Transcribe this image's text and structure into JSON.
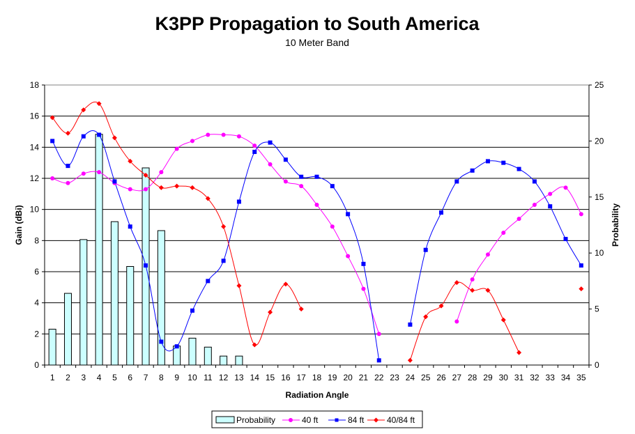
{
  "chart_data": {
    "type": "bar+line",
    "title": "K3PP Propagation to South America",
    "subtitle": "10 Meter Band",
    "xlabel": "Radiation Angle",
    "ylabel": "Gain (dBi)",
    "y2label": "Probability",
    "categories": [
      "1",
      "2",
      "3",
      "4",
      "5",
      "6",
      "7",
      "8",
      "9",
      "10",
      "11",
      "12",
      "13",
      "14",
      "15",
      "16",
      "17",
      "18",
      "19",
      "20",
      "21",
      "22",
      "23",
      "24",
      "25",
      "26",
      "27",
      "28",
      "29",
      "30",
      "31",
      "32",
      "33",
      "34",
      "35"
    ],
    "ylim": [
      0,
      18
    ],
    "yticks": [
      0,
      2,
      4,
      6,
      8,
      10,
      12,
      14,
      16,
      18
    ],
    "y2lim": [
      0,
      25
    ],
    "y2ticks": [
      0,
      5,
      10,
      15,
      20,
      25
    ],
    "grid": true,
    "legend_position": "bottom",
    "bars": {
      "name": "Probability",
      "axis": "right",
      "color": "#ccffff",
      "values": [
        3.2,
        6.4,
        11.2,
        20.6,
        12.8,
        8.8,
        17.6,
        12.0,
        1.7,
        2.4,
        1.6,
        0.8,
        0.8,
        0,
        0,
        0,
        0,
        0,
        0,
        0,
        0,
        0,
        0,
        0,
        0,
        0,
        0,
        0,
        0,
        0,
        0,
        0,
        0,
        0,
        0
      ]
    },
    "series": [
      {
        "name": "40 ft",
        "color": "#ff00ff",
        "marker": "circle",
        "values": [
          12.0,
          11.7,
          12.3,
          12.4,
          11.7,
          11.3,
          11.3,
          12.4,
          13.9,
          14.4,
          14.8,
          14.8,
          14.7,
          14.1,
          12.9,
          11.8,
          11.5,
          10.3,
          8.9,
          7.0,
          4.9,
          2.0,
          null,
          null,
          null,
          null,
          2.8,
          5.5,
          7.1,
          8.5,
          9.4,
          10.3,
          11.0,
          11.4,
          9.7
        ]
      },
      {
        "name": "84 ft",
        "color": "#0000ff",
        "marker": "square",
        "values": [
          14.4,
          12.8,
          14.7,
          14.8,
          11.8,
          8.9,
          6.4,
          1.5,
          1.2,
          3.5,
          5.4,
          6.7,
          10.5,
          13.7,
          14.3,
          13.2,
          12.1,
          12.1,
          11.5,
          9.7,
          6.5,
          0.3,
          null,
          2.6,
          7.4,
          9.8,
          11.8,
          12.5,
          13.1,
          13.0,
          12.6,
          11.8,
          10.2,
          8.1,
          6.4
        ]
      },
      {
        "name": "40/84 ft",
        "color": "#ff0000",
        "marker": "diamond",
        "values": [
          15.9,
          14.9,
          16.4,
          16.8,
          14.6,
          13.1,
          12.2,
          11.4,
          11.5,
          11.4,
          10.7,
          8.9,
          5.1,
          1.3,
          3.4,
          5.2,
          3.6,
          null,
          null,
          null,
          null,
          null,
          null,
          0.3,
          3.1,
          3.8,
          5.3,
          4.8,
          4.8,
          2.9,
          0.8,
          null,
          null,
          null,
          4.9
        ]
      }
    ]
  }
}
